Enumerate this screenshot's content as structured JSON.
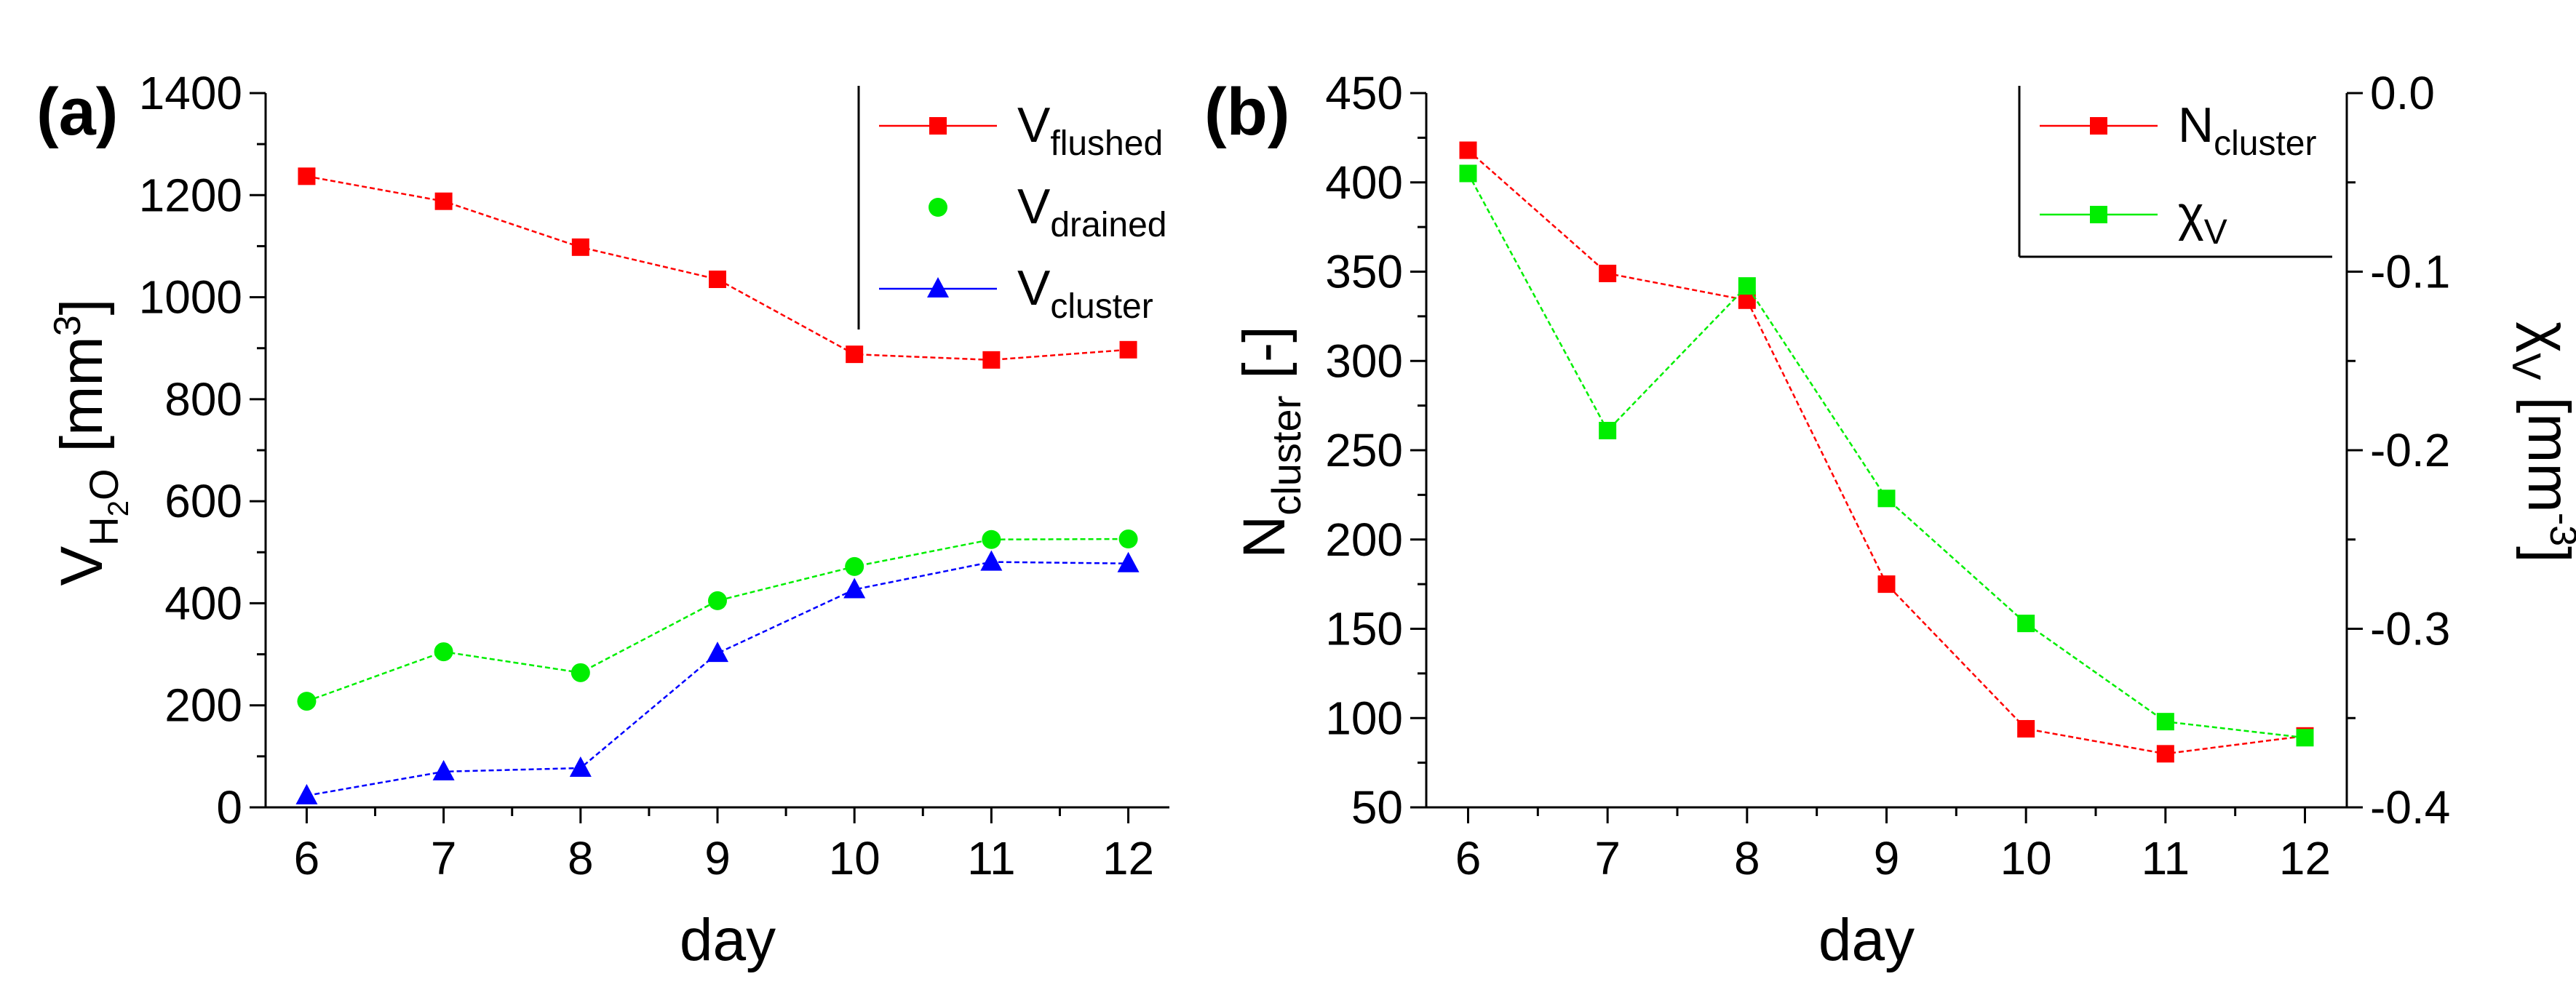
{
  "panels": [
    {
      "label": "(a)"
    },
    {
      "label": "(b)"
    }
  ],
  "chart_data": [
    {
      "type": "line",
      "panel": "(a)",
      "xlabel": "day",
      "ylabel": {
        "base": "V",
        "sub1": "H",
        "sub2": "2",
        "sub3": "O",
        "unit": "[mm",
        "unit_sup": "3",
        "unit_end": "]"
      },
      "xlim": [
        5.7,
        12.3
      ],
      "ylim": [
        0,
        1400
      ],
      "xticks": [
        "6",
        "7",
        "8",
        "9",
        "10",
        "11",
        "12"
      ],
      "yticks": [
        "0",
        "200",
        "400",
        "600",
        "800",
        "1000",
        "1200",
        "1400"
      ],
      "x": [
        6,
        7,
        8,
        9,
        10,
        11,
        12
      ],
      "legend_position": "top-right",
      "grid": false,
      "series": [
        {
          "name": "V",
          "name_sub": "flushed",
          "color": "#ff0000",
          "marker": "square",
          "values": [
            1237,
            1188,
            1098,
            1035,
            888,
            877,
            897
          ]
        },
        {
          "name": "V",
          "name_sub": "drained",
          "color": "#00ee00",
          "marker": "circle",
          "values": [
            208,
            305,
            264,
            405,
            472,
            525,
            526
          ]
        },
        {
          "name": "V",
          "name_sub": "cluster",
          "color": "#0000ff",
          "marker": "triangle",
          "values": [
            23,
            70,
            77,
            302,
            427,
            481,
            478
          ]
        }
      ]
    },
    {
      "type": "line",
      "panel": "(b)",
      "xlabel": "day",
      "ylabel": {
        "base": "N",
        "sub": "cluster",
        "unit": "[-]"
      },
      "y2label": {
        "base": "χ",
        "sub": "V",
        "unit": "[mm",
        "unit_sup": "-3",
        "unit_end": "]"
      },
      "xlim": [
        5.7,
        12.3
      ],
      "ylim": [
        50,
        450
      ],
      "y2lim": [
        -0.4,
        0.0
      ],
      "xticks": [
        "6",
        "7",
        "8",
        "9",
        "10",
        "11",
        "12"
      ],
      "yticks": [
        "50",
        "100",
        "150",
        "200",
        "250",
        "300",
        "350",
        "400",
        "450"
      ],
      "y2ticks": [
        "-0.4",
        "-0.3",
        "-0.2",
        "-0.1",
        "0.0"
      ],
      "x": [
        6,
        7,
        8,
        9,
        10,
        11,
        12
      ],
      "legend_position": "top-right",
      "grid": false,
      "series": [
        {
          "name": "N",
          "name_sub": "cluster",
          "color": "#ff0000",
          "marker": "square",
          "axis": "left",
          "values": [
            418,
            349,
            334,
            175,
            94,
            80,
            90
          ]
        },
        {
          "name": "χ",
          "name_sub": "V",
          "color": "#00ee00",
          "marker": "square",
          "axis": "right",
          "values": [
            -0.045,
            -0.189,
            -0.108,
            -0.227,
            -0.297,
            -0.352,
            -0.361
          ]
        }
      ]
    }
  ]
}
